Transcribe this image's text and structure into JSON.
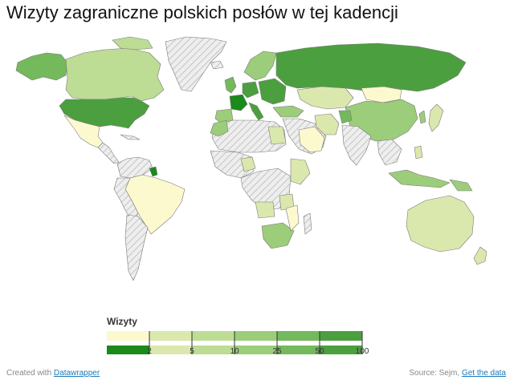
{
  "title": "Wizyty zagraniczne polskich posłów w tej kadencji",
  "legend": {
    "title": "Wizyty",
    "tick_labels": [
      "2",
      "5",
      "10",
      "25",
      "50",
      "100"
    ],
    "colors": [
      "#fdf9cf",
      "#dbe8ad",
      "#bddc94",
      "#9ccd7a",
      "#74b95c",
      "#4c9f3f"
    ],
    "highlight_color": "#1a8a1a"
  },
  "map": {
    "no_data_pattern": "hatch-gray",
    "land_default_color": "#eeeeee",
    "border_color": "#888888"
  },
  "footer": {
    "created_prefix": "Created with",
    "created_link": "Datawrapper",
    "source_prefix": "Source: Sejm,",
    "data_link": "Get the data"
  }
}
